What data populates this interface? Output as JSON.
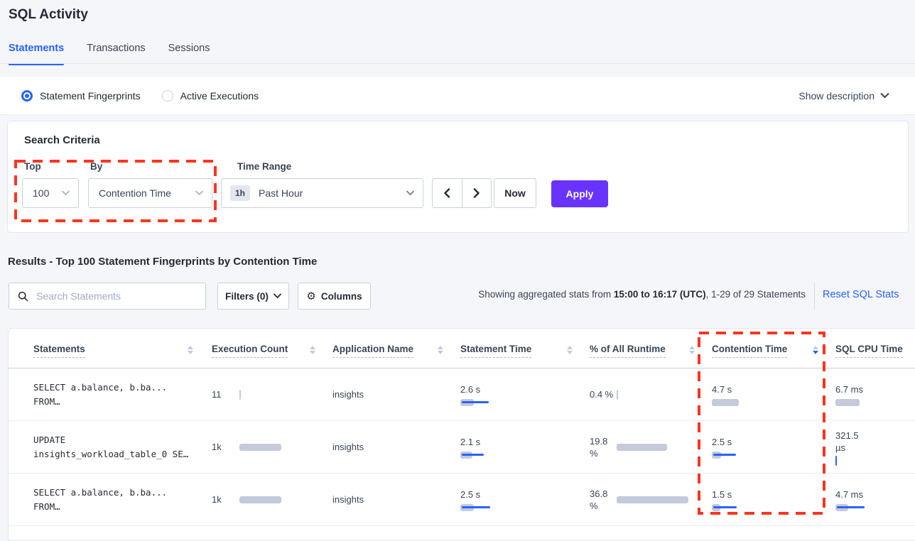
{
  "page_title": "SQL Activity",
  "tabs": [
    {
      "label": "Statements",
      "active": true
    },
    {
      "label": "Transactions",
      "active": false
    },
    {
      "label": "Sessions",
      "active": false
    }
  ],
  "view_toggle": {
    "options": [
      {
        "label": "Statement Fingerprints",
        "selected": true
      },
      {
        "label": "Active Executions",
        "selected": false
      }
    ],
    "show_description_label": "Show description"
  },
  "search_criteria": {
    "title": "Search Criteria",
    "top_label": "Top",
    "top_value": "100",
    "by_label": "By",
    "by_value": "Contention Time",
    "time_range_label": "Time Range",
    "time_range_badge": "1h",
    "time_range_value": "Past Hour",
    "now_label": "Now",
    "apply_label": "Apply"
  },
  "results": {
    "heading": "Results - Top 100 Statement Fingerprints by Contention Time",
    "search_placeholder": "Search Statements",
    "filters_label": "Filters (0)",
    "columns_label": "Columns",
    "stats_prefix": "Showing aggregated stats from ",
    "stats_bold": "15:00 to 16:17 (UTC)",
    "stats_suffix": ", 1-29 of 29 Statements",
    "reset_label": "Reset SQL Stats"
  },
  "table": {
    "columns": [
      {
        "label": "Statements",
        "sortable": true,
        "sorted": null
      },
      {
        "label": "Execution Count",
        "sortable": true,
        "sorted": null
      },
      {
        "label": "Application Name",
        "sortable": true,
        "sorted": null
      },
      {
        "label": "Statement Time",
        "sortable": true,
        "sorted": null
      },
      {
        "label": "% of All Runtime",
        "sortable": true,
        "sorted": null
      },
      {
        "label": "Contention Time",
        "sortable": true,
        "sorted": "desc"
      },
      {
        "label": "SQL CPU Time",
        "sortable": false,
        "sorted": null
      }
    ],
    "rows": [
      {
        "statement": [
          "SELECT a.balance, b.ba...",
          "FROM…"
        ],
        "execution_count": "11",
        "application": "insights",
        "statement_time": "2.6 s",
        "runtime_pct": "0.4 %",
        "contention_time": "4.7 s",
        "sql_cpu_time": "6.7 ms",
        "bars": {
          "exec": {
            "type": "sliver",
            "color": "gray"
          },
          "time": {
            "gray": 19,
            "blue": 38
          },
          "runtime": {
            "type": "sliver",
            "color": "gray"
          },
          "contention": {
            "gray": 38,
            "blue": 0
          },
          "cpu": {
            "gray": 34,
            "blue": 0
          }
        }
      },
      {
        "statement": [
          "UPDATE",
          "insights_workload_table_0 SE…"
        ],
        "execution_count": "1k",
        "application": "insights",
        "statement_time": "2.1 s",
        "runtime_pct": "19.8 %",
        "contention_time": "2.5 s",
        "sql_cpu_time": "321.5 µs",
        "bars": {
          "exec": {
            "gray": 59,
            "blue": 0
          },
          "time": {
            "gray": 17,
            "blue": 31
          },
          "runtime": {
            "gray": 71,
            "blue": 0
          },
          "contention": {
            "gray": 13,
            "blue": 32
          },
          "cpu": {
            "type": "sliver",
            "color": "blue"
          }
        }
      },
      {
        "statement": [
          "SELECT a.balance, b.ba...",
          "FROM…"
        ],
        "execution_count": "1k",
        "application": "insights",
        "statement_time": "2.5 s",
        "runtime_pct": "36.8 %",
        "contention_time": "1.5 s",
        "sql_cpu_time": "4.7 ms",
        "bars": {
          "exec": {
            "gray": 59,
            "blue": 0
          },
          "time": {
            "gray": 19,
            "blue": 40
          },
          "runtime": {
            "gray": 101,
            "blue": 0
          },
          "contention": {
            "gray": 12,
            "blue": 33
          },
          "cpu": {
            "gray": 18,
            "blue": 39
          }
        }
      }
    ]
  },
  "colors": {
    "accent_blue": "#2962FF",
    "apply_purple": "#6933FF",
    "bar_gray": "#C4CAD9",
    "annotation_red": "#FB351E"
  }
}
